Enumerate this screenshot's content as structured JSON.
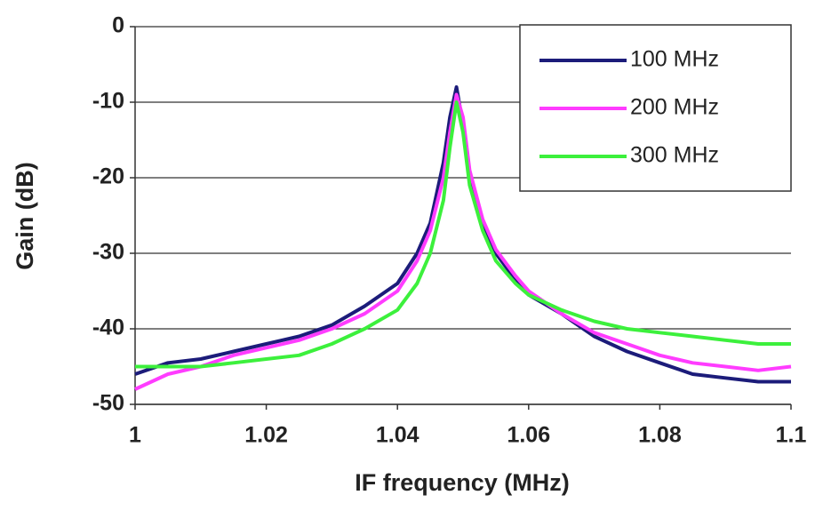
{
  "chart_data": {
    "type": "line",
    "xlabel": "IF frequency (MHz)",
    "ylabel": "Gain (dB)",
    "x": [
      1,
      1.005,
      1.01,
      1.015,
      1.02,
      1.025,
      1.03,
      1.035,
      1.04,
      1.043,
      1.045,
      1.047,
      1.048,
      1.049,
      1.05,
      1.051,
      1.053,
      1.055,
      1.058,
      1.06,
      1.065,
      1.07,
      1.075,
      1.08,
      1.085,
      1.09,
      1.095,
      1.1
    ],
    "series": [
      {
        "name": "100 MHz",
        "color": "#1c1c7a",
        "values": [
          -46,
          -44.5,
          -44,
          -43,
          -42,
          -41,
          -39.5,
          -37,
          -34,
          -30,
          -26,
          -18,
          -12,
          -8,
          -13,
          -20,
          -26,
          -30,
          -33.5,
          -35.5,
          -38,
          -41,
          -43,
          -44.5,
          -46,
          -46.5,
          -47,
          -47
        ]
      },
      {
        "name": "200 MHz",
        "color": "#ff3cff",
        "values": [
          -48,
          -46,
          -45,
          -43.5,
          -42.5,
          -41.5,
          -40,
          -38,
          -35,
          -31,
          -27,
          -20,
          -14,
          -9,
          -12,
          -19,
          -25.5,
          -29.5,
          -33,
          -35,
          -38,
          -40.5,
          -42,
          -43.5,
          -44.5,
          -45,
          -45.5,
          -45
        ]
      },
      {
        "name": "300 MHz",
        "color": "#3cf03c",
        "values": [
          -45,
          -45,
          -45,
          -44.5,
          -44,
          -43.5,
          -42,
          -40,
          -37.5,
          -34,
          -30,
          -23,
          -16,
          -10,
          -14,
          -21,
          -27,
          -31,
          -34,
          -35.5,
          -37.5,
          -39,
          -40,
          -40.5,
          -41,
          -41.5,
          -42,
          -42
        ]
      }
    ],
    "xlim": [
      1,
      1.1
    ],
    "xticks": [
      1,
      1.02,
      1.04,
      1.06,
      1.08,
      1.1
    ],
    "ylim": [
      -50,
      0
    ],
    "yticks": [
      0,
      -10,
      -20,
      -30,
      -40,
      -50
    ],
    "grid": true,
    "legend": "upper-right"
  }
}
